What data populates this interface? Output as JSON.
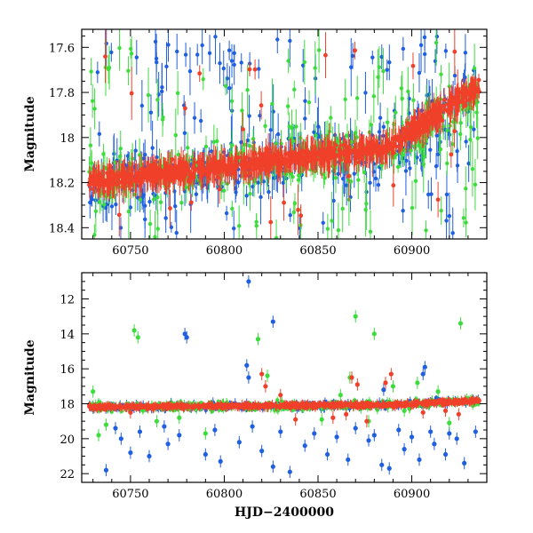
{
  "colors": {
    "blue": "#1f5fe0",
    "green": "#3ddc3d",
    "red": "#f0402a"
  },
  "chart_data": [
    {
      "type": "scatter",
      "panel": "top",
      "title": "",
      "xlabel": "",
      "ylabel": "Magnitude",
      "xlim": [
        60724,
        60940
      ],
      "ylim": [
        18.45,
        17.52
      ],
      "y_inverted": true,
      "x_ticks": [
        "60750",
        "60800",
        "60850",
        "60900"
      ],
      "y_ticks": [
        "17.6",
        "17.8",
        "18",
        "18.2",
        "18.4"
      ],
      "series": [
        {
          "color": "blue",
          "baseline_start": 18.2,
          "baseline_end": 17.78,
          "scatter": 0.18,
          "outlier_fraction": 0.35,
          "outlier_range": [
            17.55,
            18.45
          ]
        },
        {
          "color": "green",
          "baseline_start": 18.2,
          "baseline_end": 17.8,
          "scatter": 0.15,
          "outlier_fraction": 0.25,
          "outlier_range": [
            17.55,
            18.45
          ]
        },
        {
          "color": "red",
          "baseline_start": 18.2,
          "baseline_end": 17.75,
          "scatter": 0.05,
          "outlier_fraction": 0.03,
          "outlier_range": [
            17.6,
            18.4
          ]
        }
      ]
    },
    {
      "type": "scatter",
      "panel": "bottom",
      "title": "",
      "xlabel": "HJD−2400000",
      "ylabel": "Magnitude",
      "xlim": [
        60724,
        60940
      ],
      "ylim": [
        22.5,
        10.5
      ],
      "y_inverted": true,
      "x_ticks": [
        "60750",
        "60800",
        "60850",
        "60900"
      ],
      "y_ticks": [
        "12",
        "14",
        "16",
        "18",
        "20",
        "22"
      ],
      "series": [
        {
          "color": "blue",
          "baseline_start": 18.2,
          "baseline_end": 17.8,
          "scatter": 0.15,
          "outliers": [
            [
              60813,
              11.0
            ],
            [
              60779,
              14.0
            ],
            [
              60780,
              14.2
            ],
            [
              60812,
              15.8
            ],
            [
              60826,
              13.3
            ],
            [
              60813,
              16.5
            ],
            [
              60885,
              17.2
            ],
            [
              60907,
              15.9
            ],
            [
              60906,
              16.3
            ],
            [
              60750,
              20.8
            ],
            [
              60745,
              20.0
            ],
            [
              60760,
              21.0
            ],
            [
              60770,
              20.3
            ],
            [
              60790,
              20.9
            ],
            [
              60798,
              21.3
            ],
            [
              60808,
              20.2
            ],
            [
              60820,
              20.7
            ],
            [
              60826,
              21.6
            ],
            [
              60835,
              21.9
            ],
            [
              60843,
              20.4
            ],
            [
              60855,
              20.9
            ],
            [
              60866,
              21.2
            ],
            [
              60877,
              20.1
            ],
            [
              60884,
              21.5
            ],
            [
              60888,
              21.7
            ],
            [
              60896,
              20.6
            ],
            [
              60904,
              21.2
            ],
            [
              60912,
              20.3
            ],
            [
              60918,
              20.9
            ],
            [
              60924,
              20.0
            ],
            [
              60928,
              21.4
            ],
            [
              60934,
              19.6
            ],
            [
              60737,
              21.8
            ],
            [
              60742,
              19.4
            ],
            [
              60755,
              19.6
            ],
            [
              60768,
              19.3
            ],
            [
              60776,
              19.8
            ],
            [
              60795,
              19.5
            ],
            [
              60815,
              19.3
            ],
            [
              60830,
              19.6
            ],
            [
              60848,
              19.7
            ],
            [
              60860,
              19.9
            ],
            [
              60870,
              19.4
            ],
            [
              60880,
              19.8
            ],
            [
              60893,
              19.5
            ],
            [
              60900,
              19.9
            ],
            [
              60910,
              19.6
            ],
            [
              60920,
              19.7
            ]
          ]
        },
        {
          "color": "green",
          "baseline_start": 18.2,
          "baseline_end": 17.85,
          "scatter": 0.2,
          "outliers": [
            [
              60752,
              13.8
            ],
            [
              60754,
              14.2
            ],
            [
              60818,
              14.3
            ],
            [
              60870,
              13.0
            ],
            [
              60880,
              14.0
            ],
            [
              60926,
              13.4
            ],
            [
              60730,
              17.3
            ],
            [
              60733,
              19.8
            ],
            [
              60737,
              19.2
            ],
            [
              60764,
              19.0
            ],
            [
              60776,
              18.8
            ],
            [
              60790,
              19.7
            ],
            [
              60823,
              16.4
            ],
            [
              60852,
              18.9
            ],
            [
              60862,
              17.5
            ],
            [
              60867,
              16.5
            ],
            [
              60877,
              19.0
            ],
            [
              60890,
              17.0
            ],
            [
              60896,
              18.4
            ],
            [
              60914,
              17.3
            ],
            [
              60920,
              19.1
            ],
            [
              60903,
              16.8
            ]
          ]
        },
        {
          "color": "red",
          "baseline_start": 18.2,
          "baseline_end": 17.8,
          "scatter": 0.08,
          "outliers": [
            [
              60820,
              16.3
            ],
            [
              60830,
              17.5
            ],
            [
              60822,
              17.0
            ],
            [
              60868,
              16.5
            ],
            [
              60871,
              16.9
            ],
            [
              60876,
              19.0
            ],
            [
              60886,
              16.8
            ],
            [
              60889,
              16.3
            ],
            [
              60906,
              18.5
            ],
            [
              60750,
              18.5
            ],
            [
              60838,
              18.9
            ],
            [
              60858,
              18.8
            ],
            [
              60865,
              18.6
            ],
            [
              60918,
              18.4
            ],
            [
              60925,
              18.6
            ]
          ]
        }
      ]
    }
  ]
}
